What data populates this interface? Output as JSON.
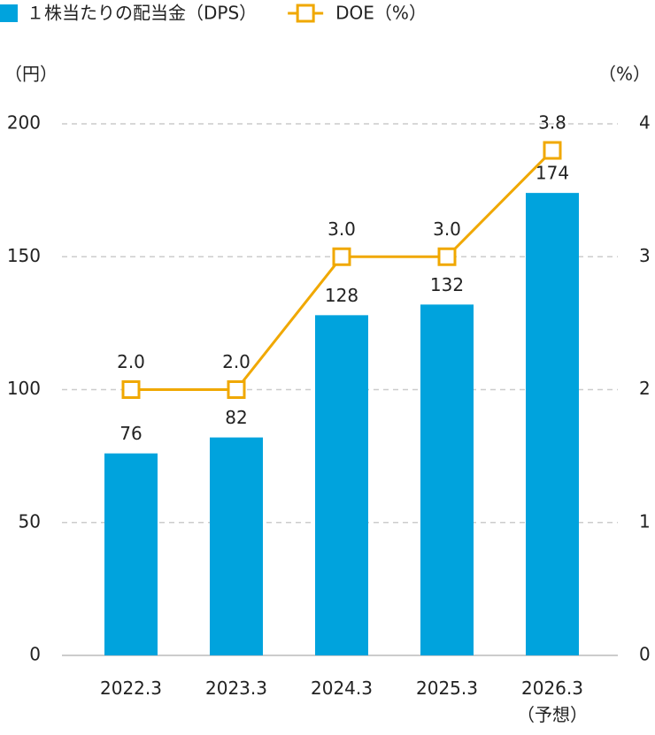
{
  "chart_data": {
    "type": "bar_line",
    "ylabel": "（円）",
    "y2label": "（%）",
    "categories": [
      "2022.3",
      "2023.3",
      "2024.3",
      "2025.3",
      "2026.3\n（予想）"
    ],
    "series": [
      {
        "name": "１株当たりの配当金（DPS）",
        "type": "bar",
        "color": "#00a3dd",
        "values": [
          76,
          82,
          128,
          132,
          174
        ]
      },
      {
        "name": "DOE（%）",
        "type": "line",
        "axis": "y2",
        "color": "#f0a800",
        "values": [
          2.0,
          2.0,
          3.0,
          3.0,
          3.8
        ],
        "value_labels": [
          "2.0",
          "2.0",
          "3.0",
          "3.0",
          "3.8"
        ]
      }
    ],
    "ylim": [
      0,
      200
    ],
    "yticks": [
      0,
      50,
      100,
      150,
      200
    ],
    "y2lim": [
      0,
      4
    ],
    "y2ticks": [
      0,
      1,
      2,
      3,
      4
    ],
    "grid": true
  }
}
